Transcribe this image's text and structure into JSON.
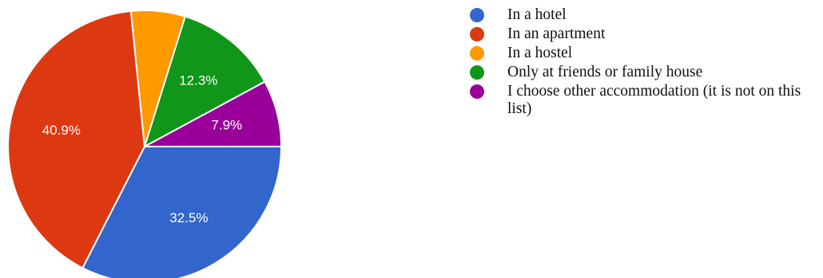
{
  "chart_data": {
    "type": "pie",
    "slices": [
      {
        "label": "In a hotel",
        "value": 32.5,
        "value_label": "32.5%",
        "color": "#3366cc"
      },
      {
        "label": "In an apartment",
        "value": 40.9,
        "value_label": "40.9%",
        "color": "#dc3912"
      },
      {
        "label": "In a hostel",
        "value": 6.4,
        "value_label": "",
        "color": "#ff9900"
      },
      {
        "label": "Only at friends or family house",
        "value": 12.3,
        "value_label": "12.3%",
        "color": "#109618"
      },
      {
        "label": "I choose other accommodation (it is not on this list)",
        "value": 7.9,
        "value_label": "7.9%",
        "color": "#990099"
      }
    ],
    "legend_position": "right"
  }
}
